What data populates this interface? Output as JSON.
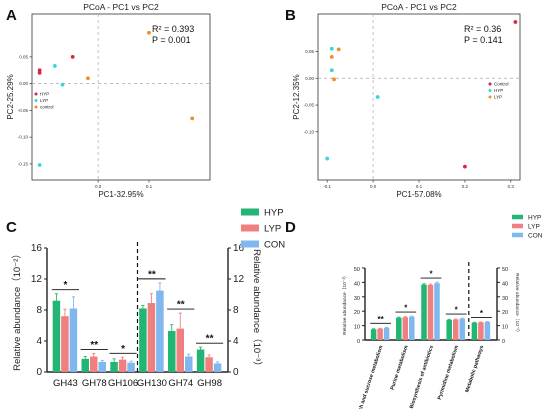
{
  "panels": {
    "A": "A",
    "B": "B",
    "C": "C",
    "D": "D"
  },
  "colors": {
    "HYP": "#22b573",
    "LYP": "#f08080",
    "CON": "#7fb7ee",
    "pcoa_hyp": "#d7263d",
    "pcoa_lyp": "#3ad6d6",
    "pcoa_control": "#f28c28"
  },
  "chart_data": [
    {
      "type": "scatter",
      "title": "PCoA - PC1 vs PC2",
      "xlabel": "PC1-32.95%",
      "ylabel": "PC2-25.29%",
      "xlim": [
        -0.13,
        0.22
      ],
      "ylim": [
        -0.18,
        0.13
      ],
      "xticks": [
        "0.0",
        "0.1"
      ],
      "yticks": [
        "-0.15",
        "-0.10",
        "-0.05",
        "0.00",
        "0.05"
      ],
      "annotation": {
        "r2": "R² = 0.393",
        "p": "P = 0.001"
      },
      "legend": {
        "placement": "middle-left",
        "entries": [
          "HYP",
          "LYP",
          "control"
        ]
      },
      "series": [
        {
          "name": "HYP",
          "points": [
            [
              -0.115,
              0.02
            ],
            [
              -0.115,
              0.025
            ],
            [
              -0.05,
              0.05
            ]
          ]
        },
        {
          "name": "LYP",
          "points": [
            [
              -0.085,
              0.033
            ],
            [
              -0.07,
              -0.002
            ],
            [
              -0.115,
              -0.152
            ]
          ]
        },
        {
          "name": "control",
          "points": [
            [
              -0.02,
              0.01
            ],
            [
              0.1,
              0.095
            ],
            [
              0.185,
              -0.065
            ]
          ]
        }
      ]
    },
    {
      "type": "scatter",
      "title": "PCoA - PC1 vs PC2",
      "xlabel": "PC1-57.08%",
      "ylabel": "PC2-12.35%",
      "xlim": [
        -0.12,
        0.32
      ],
      "ylim": [
        -0.19,
        0.12
      ],
      "xticks": [
        "-0.1",
        "0.0",
        "0.1",
        "0.2",
        "0.3"
      ],
      "yticks": [
        "-0.10",
        "-0.05",
        "0.00",
        "0.05"
      ],
      "annotation": {
        "r2": "R² = 0.36",
        "p": "P = 0.141"
      },
      "legend": {
        "placement": "middle-right",
        "entries": [
          "Control",
          "HYP",
          "LYP"
        ]
      },
      "series": [
        {
          "name": "Control",
          "points": [
            [
              0.2,
              -0.165
            ],
            [
              0.31,
              0.105
            ]
          ]
        },
        {
          "name": "HYP",
          "points": [
            [
              -0.09,
              0.015
            ],
            [
              -0.09,
              0.055
            ],
            [
              0.01,
              -0.035
            ],
            [
              -0.1,
              -0.15
            ]
          ]
        },
        {
          "name": "LYP",
          "points": [
            [
              -0.075,
              0.054
            ],
            [
              -0.09,
              0.04
            ],
            [
              -0.085,
              -0.002
            ]
          ]
        }
      ]
    },
    {
      "type": "bar",
      "categories": [
        "GH43",
        "GH78",
        "GH106",
        "GH130",
        "GH74",
        "GH98"
      ],
      "ylabel_left": "Relative abundance（10⁻²）",
      "ylabel_right": "Relative abundance（10⁻³）",
      "ylim_left": [
        0,
        16
      ],
      "yticks_left": [
        "0",
        "4",
        "8",
        "12",
        "16"
      ],
      "ylim_right": [
        0,
        16
      ],
      "yticks_right": [
        "0",
        "4",
        "8",
        "12",
        "16"
      ],
      "legend": {
        "placement": "top-right",
        "entries": [
          "HYP",
          "LYP",
          "CON"
        ]
      },
      "series": [
        {
          "name": "HYP",
          "values": [
            9.2,
            1.7,
            1.3,
            8.2,
            5.3,
            2.9
          ],
          "errors": [
            0.9,
            0.3,
            0.4,
            0.4,
            0.8,
            0.3
          ]
        },
        {
          "name": "LYP",
          "values": [
            7.2,
            2.0,
            1.6,
            8.9,
            5.6,
            1.9
          ],
          "errors": [
            0.9,
            0.4,
            0.3,
            1.2,
            2.0,
            0.3
          ]
        },
        {
          "name": "CON",
          "values": [
            8.2,
            1.3,
            1.2,
            10.5,
            2.0,
            1.1
          ],
          "errors": [
            1.5,
            0.2,
            0.2,
            1.0,
            0.3,
            0.2
          ]
        }
      ],
      "significance": [
        "*",
        "**",
        "*",
        "**",
        "**",
        "**"
      ]
    },
    {
      "type": "bar",
      "categories": [
        "Starch and sucrose metabolism",
        "Purine metabolism",
        "Biosynthesis of antibiotics",
        "Pyrimidine metabolism",
        "Metabolic pathways"
      ],
      "ylabel_left": "Relative abundance（10⁻³）",
      "ylabel_right": "Relative abundance（10⁻²）",
      "ylim_left": [
        0,
        50
      ],
      "yticks_left": [
        "0",
        "10",
        "20",
        "30",
        "40",
        "50"
      ],
      "ylim_right": [
        0,
        50
      ],
      "yticks_right": [
        "0",
        "10",
        "20",
        "30",
        "40",
        "50"
      ],
      "legend": {
        "placement": "top-right",
        "entries": [
          "HYP",
          "LYP",
          "CON"
        ]
      },
      "series": [
        {
          "name": "HYP",
          "values": [
            7.5,
            15.5,
            38.5,
            14,
            12
          ],
          "errors": [
            0.3,
            0.4,
            0.6,
            0.4,
            0.3
          ]
        },
        {
          "name": "LYP",
          "values": [
            7.8,
            15.8,
            38.3,
            14.2,
            12.2
          ],
          "errors": [
            0.3,
            0.4,
            0.5,
            0.4,
            0.3
          ]
        },
        {
          "name": "CON",
          "values": [
            8.5,
            16.2,
            39.5,
            14.8,
            12.5
          ],
          "errors": [
            0.3,
            0.4,
            0.7,
            0.4,
            0.3
          ]
        }
      ],
      "significance": [
        "**",
        "*",
        "*",
        "*",
        "*"
      ]
    }
  ]
}
